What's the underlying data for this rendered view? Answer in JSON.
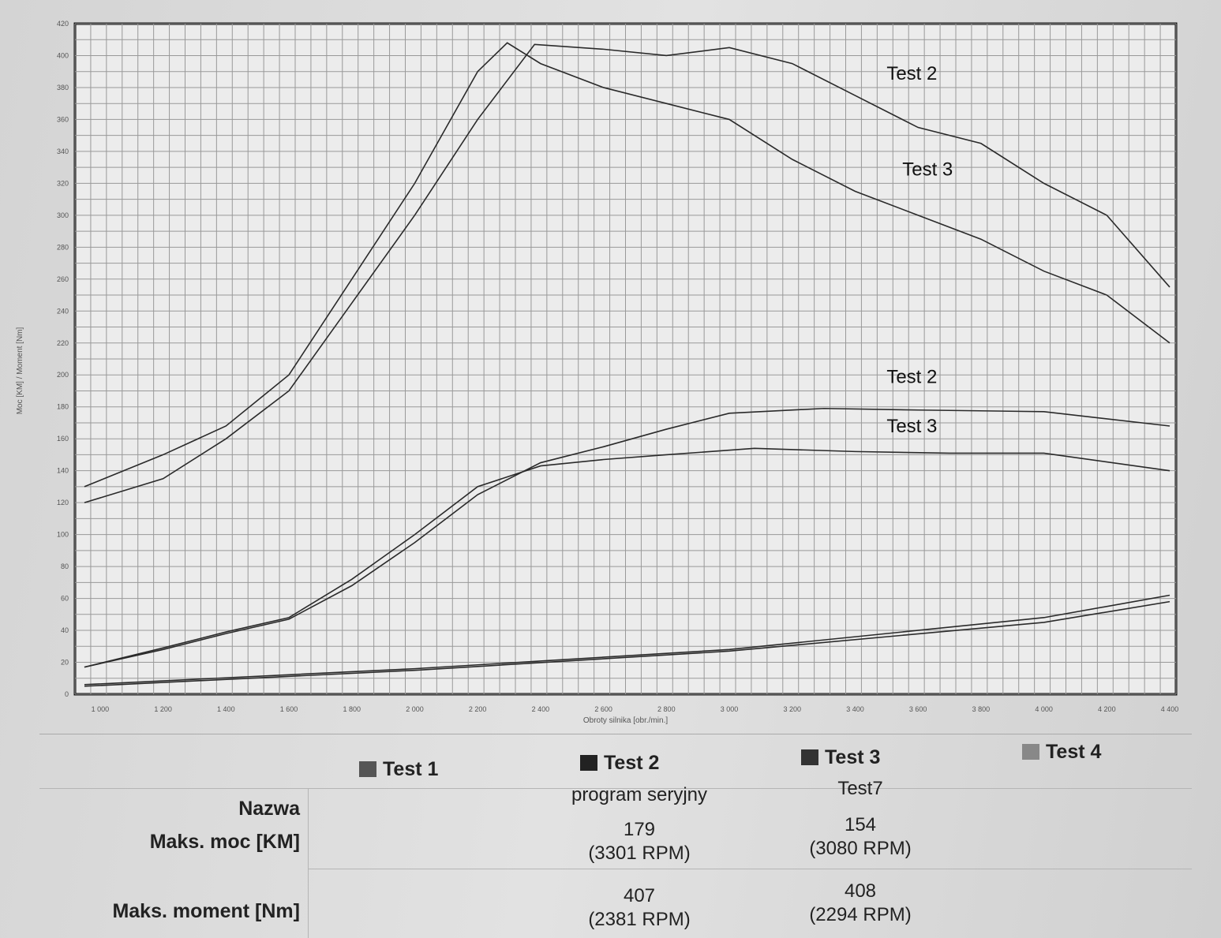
{
  "chart_data": {
    "type": "line",
    "xlabel": "Obroty silnika [obr./min.]",
    "ylabel": "Moc [KM] / Moment [Nm]",
    "xlim": [
      920,
      4420
    ],
    "ylim": [
      0,
      420
    ],
    "xticks": [
      "1 000",
      "1 200",
      "1 400",
      "1 600",
      "1 800",
      "2 000",
      "2 200",
      "2 400",
      "2 600",
      "2 800",
      "3 000",
      "3 200",
      "3 400",
      "3 600",
      "3 800",
      "4 000",
      "4 200",
      "4 400"
    ],
    "yticks": [
      "0",
      "20",
      "40",
      "60",
      "80",
      "100",
      "120",
      "140",
      "160",
      "180",
      "200",
      "220",
      "240",
      "260",
      "280",
      "300",
      "320",
      "340",
      "360",
      "380",
      "400",
      "420"
    ],
    "grid": true,
    "series": [
      {
        "name": "Test 2 torque",
        "x": [
          950,
          1200,
          1400,
          1600,
          1800,
          2000,
          2200,
          2381,
          2600,
          2800,
          3000,
          3200,
          3400,
          3600,
          3800,
          4000,
          4200,
          4400
        ],
        "y": [
          120,
          135,
          160,
          190,
          245,
          300,
          360,
          407,
          404,
          400,
          405,
          395,
          375,
          355,
          345,
          320,
          300,
          255
        ]
      },
      {
        "name": "Test 3 torque",
        "x": [
          950,
          1200,
          1400,
          1600,
          1800,
          2000,
          2200,
          2294,
          2400,
          2600,
          2800,
          3000,
          3200,
          3400,
          3600,
          3800,
          4000,
          4200,
          4400
        ],
        "y": [
          130,
          150,
          168,
          200,
          260,
          320,
          390,
          408,
          395,
          380,
          370,
          360,
          335,
          315,
          300,
          285,
          265,
          250,
          220
        ]
      },
      {
        "name": "Test 2 power",
        "x": [
          950,
          1200,
          1400,
          1600,
          1800,
          2000,
          2200,
          2400,
          2600,
          2800,
          3000,
          3301,
          3600,
          4000,
          4400
        ],
        "y": [
          17,
          28,
          38,
          47,
          68,
          95,
          125,
          145,
          155,
          166,
          176,
          179,
          178,
          177,
          168
        ]
      },
      {
        "name": "Test 3 power",
        "x": [
          950,
          1200,
          1400,
          1600,
          1800,
          2000,
          2200,
          2400,
          2600,
          2800,
          3080,
          3400,
          3700,
          4000,
          4400
        ],
        "y": [
          17,
          29,
          39,
          48,
          72,
          100,
          130,
          143,
          147,
          150,
          154,
          152,
          151,
          151,
          140
        ]
      },
      {
        "name": "Test 2 losses",
        "x": [
          950,
          2000,
          3000,
          4000,
          4400
        ],
        "y": [
          6,
          16,
          28,
          48,
          62
        ]
      },
      {
        "name": "Test 3 losses",
        "x": [
          950,
          2000,
          3000,
          4000,
          4400
        ],
        "y": [
          5,
          15,
          27,
          45,
          58
        ]
      }
    ],
    "annotations": [
      {
        "text": "Test 2",
        "x": 3500,
        "y": 385
      },
      {
        "text": "Test 3",
        "x": 3550,
        "y": 325
      },
      {
        "text": "Test 2",
        "x": 3500,
        "y": 195
      },
      {
        "text": "Test 3",
        "x": 3500,
        "y": 164
      }
    ]
  },
  "table": {
    "columns": [
      {
        "label": "Test 1",
        "color": "#555555"
      },
      {
        "label": "Test 2",
        "color": "#222222"
      },
      {
        "label": "Test 3",
        "color": "#333333"
      },
      {
        "label": "Test 4",
        "color": "#888888"
      }
    ],
    "row_labels": [
      "Nazwa",
      "Maks. moc [KM]",
      "Maks. moment [Nm]"
    ],
    "test2": {
      "name": "program seryjny",
      "power": "179",
      "power_rpm": "(3301 RPM)",
      "torque": "407",
      "torque_rpm": "(2381 RPM)"
    },
    "test3": {
      "name": "Test7",
      "power": "154",
      "power_rpm": "(3080 RPM)",
      "torque": "408",
      "torque_rpm": "(2294 RPM)"
    }
  }
}
